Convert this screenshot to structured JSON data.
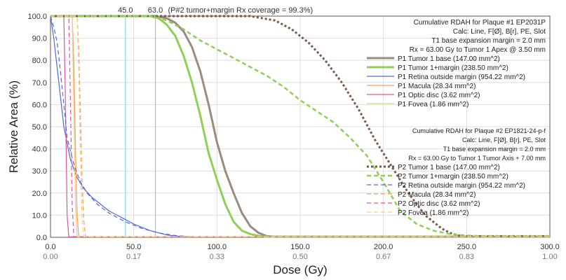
{
  "chart_data": {
    "type": "line",
    "xlabel": "Dose (Gy)",
    "ylabel": "Relative Area (%)",
    "xlim": [
      0,
      300
    ],
    "ylim": [
      0,
      100
    ],
    "x_ticks": [
      "0.0",
      "50.0",
      "100.0",
      "150.0",
      "200.0",
      "250.0",
      "300.0"
    ],
    "x_ticks_secondary": [
      "0.00",
      "0.17",
      "0.33",
      "0.50",
      "0.67",
      "0.83",
      "1.00"
    ],
    "y_ticks": [
      "0.0",
      "10.0",
      "20.0",
      "30.0",
      "40.0",
      "50.0",
      "60.0",
      "70.0",
      "80.0",
      "90.0",
      "100.0"
    ],
    "grid": true,
    "reference_lines": [
      {
        "x": 45.0,
        "label": "45.0",
        "color": "#7fdcf0"
      },
      {
        "x": 63.0,
        "label": "63.0",
        "color": "#bbbbbb"
      }
    ],
    "annotation": "(P#2 tumor+margin Rx coverage = 99.3%)",
    "legend_p1": {
      "title": "Cumulative RDAH for Plaque #1 EP2031P",
      "lines": [
        "Calc: Line, F[Ø], B[r], PE, Slot",
        "T1  base expansion margin = 2.0 mm",
        "Rx = 63.00 Gy to Tumor 1 Apex @ 3.50 mm"
      ]
    },
    "legend_p2": {
      "title": "Cumulative RDAH for Plaque #2 EP1821-24-p-f",
      "lines": [
        "Calc: Line, F[Ø], B[r], PE, Slot",
        "T1  base expansion margin = 2.0 mm",
        "Rx = 63.00 Gy to Tumor 1 Tumor Axis + 7.00 mm"
      ]
    },
    "series": [
      {
        "name": "P1 Tumor 1 base (147.00 mm^2)",
        "color": "#9a8a80",
        "dash": "solid",
        "width": 3,
        "x": [
          0,
          63,
          70,
          75,
          80,
          85,
          90,
          95,
          100,
          105,
          110,
          115,
          120,
          125,
          130,
          135,
          300
        ],
        "y": [
          100,
          100,
          99,
          97,
          93,
          86,
          75,
          60,
          43,
          30,
          20,
          11,
          5,
          2,
          0.5,
          0.3,
          0.3
        ]
      },
      {
        "name": "P1 Tumor 1+margin (238.50 mm^2)",
        "color": "#8fcf55",
        "dash": "solid",
        "width": 3,
        "x": [
          0,
          60,
          65,
          70,
          75,
          80,
          85,
          90,
          95,
          100,
          105,
          110,
          115,
          120,
          125,
          130,
          300
        ],
        "y": [
          100,
          100,
          99,
          96,
          91,
          82,
          70,
          55,
          38,
          26,
          15,
          7,
          3,
          1.5,
          0.6,
          0.3,
          0.3
        ]
      },
      {
        "name": "P1 Retina outside margin (954.22 mm^2)",
        "color": "#5566dd",
        "dash": "solid",
        "width": 1.2,
        "x": [
          0,
          2,
          5,
          8,
          12,
          16,
          20,
          25,
          30,
          35,
          40,
          45,
          50,
          55,
          60,
          65,
          70,
          80,
          300
        ],
        "y": [
          100,
          90,
          70,
          50,
          35,
          27,
          22,
          18,
          15,
          12,
          10,
          8,
          6,
          4.5,
          3,
          2,
          1,
          0.3,
          0.3
        ]
      },
      {
        "name": "P1 Macula (28.34 mm^2)",
        "color": "#f0a060",
        "dash": "solid",
        "width": 1.2,
        "x": [
          0,
          13,
          14,
          15,
          16,
          17,
          300
        ],
        "y": [
          100,
          100,
          80,
          40,
          10,
          0.2,
          0.2
        ]
      },
      {
        "name": "P1 Optic disc (3.62 mm^2)",
        "color": "#e0549a",
        "dash": "solid",
        "width": 1.2,
        "x": [
          0,
          8,
          9,
          10,
          11,
          300
        ],
        "y": [
          100,
          100,
          60,
          10,
          0.2,
          0.2
        ]
      },
      {
        "name": "P1 Fovea (1.86 mm^2)",
        "color": "#f0d080",
        "dash": "solid",
        "width": 1.2,
        "x": [
          0,
          13,
          14,
          15,
          16,
          300
        ],
        "y": [
          100,
          100,
          60,
          15,
          0.2,
          0.2
        ]
      },
      {
        "name": "P2 Tumor 1 base (147.00 mm^2)",
        "color": "#7a5848",
        "dash": "dotted",
        "width": 3,
        "x": [
          0,
          120,
          135,
          145,
          155,
          165,
          175,
          185,
          195,
          205,
          215,
          225,
          235,
          240,
          245,
          250,
          300
        ],
        "y": [
          100,
          100,
          98,
          94,
          88,
          80,
          70,
          58,
          44,
          32,
          20,
          10,
          4,
          2,
          0.8,
          0.5,
          0.5
        ]
      },
      {
        "name": "P2 Tumor 1+margin (238.50 mm^2)",
        "color": "#8fcf55",
        "dash": "dashed",
        "width": 2.5,
        "x": [
          0,
          60,
          70,
          80,
          90,
          100,
          110,
          120,
          130,
          140,
          150,
          160,
          170,
          180,
          190,
          200,
          210,
          220,
          230,
          240,
          250,
          260,
          300
        ],
        "y": [
          100,
          100,
          98,
          94,
          89,
          85,
          81,
          77,
          73,
          68,
          62,
          57,
          52,
          45,
          37,
          25,
          12,
          6,
          3,
          1.5,
          0.8,
          0.5,
          0.5
        ]
      },
      {
        "name": "P2 Retina outside margin (954.22 mm^2)",
        "color": "#5566dd",
        "dash": "dashed",
        "width": 1.2,
        "x": [
          0,
          2,
          4,
          6,
          8,
          10,
          14,
          18,
          22,
          28,
          35,
          45,
          55,
          65,
          75,
          85,
          300
        ],
        "y": [
          100,
          95,
          88,
          75,
          60,
          45,
          33,
          25,
          20,
          15,
          11,
          7,
          4,
          2,
          0.8,
          0.3,
          0.3
        ]
      },
      {
        "name": "P2 Macula (28.34 mm^2)",
        "color": "#f0a060",
        "dash": "dashed",
        "width": 1.2,
        "x": [
          0,
          16,
          17,
          18,
          19,
          20,
          21,
          300
        ],
        "y": [
          100,
          100,
          85,
          55,
          25,
          8,
          0.3,
          0.3
        ]
      },
      {
        "name": "P2 Optic disc (3.62 mm^2)",
        "color": "#e0549a",
        "dash": "dashed",
        "width": 1.2,
        "x": [
          0,
          11,
          12,
          13,
          14,
          300
        ],
        "y": [
          100,
          100,
          60,
          15,
          0.3,
          0.3
        ]
      },
      {
        "name": "P2 Fovea (1.86 mm^2)",
        "color": "#f0d080",
        "dash": "dashed",
        "width": 1.2,
        "x": [
          0,
          16,
          17,
          18,
          19,
          20,
          300
        ],
        "y": [
          100,
          100,
          75,
          35,
          8,
          0.3,
          0.3
        ]
      }
    ]
  }
}
